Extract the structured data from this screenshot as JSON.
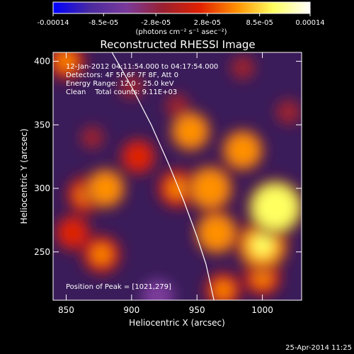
{
  "chart_data": {
    "type": "heatmap",
    "title": "Reconstructed RHESSI Image",
    "xlabel": "Heliocentric X (arcsec)",
    "ylabel": "Heliocentric Y (arcsec)",
    "xlim": [
      840,
      1030
    ],
    "ylim": [
      212,
      407
    ],
    "x_ticks": [
      850,
      900,
      950,
      1000
    ],
    "y_ticks": [
      250,
      300,
      350,
      400
    ],
    "colorbar": {
      "range": [
        -0.00014,
        0.00014
      ],
      "tick_labels": [
        "-0.00014",
        "-8.5e-05",
        "-2.8e-05",
        "2.8e-05",
        "8.5e-05",
        "0.00014"
      ],
      "tick_values": [
        -0.00014,
        -8.5e-05,
        -2.8e-05,
        2.8e-05,
        8.5e-05,
        0.00014
      ],
      "unit_label": "(photons cm⁻² s⁻¹ asec⁻²)",
      "colors": [
        "#0000ff",
        "#4a2aa0",
        "#7a3a9a",
        "#9a2030",
        "#e02000",
        "#ff9000",
        "#ffff60",
        "#ffffff"
      ]
    },
    "annotations": {
      "time_range": "12-Jan-2012 04:11:54.000 to 04:17:54.000",
      "detectors": "Detectors: 4F 5F 6F 7F 8F, Att 0",
      "energy": "Energy Range: 12.0 - 25.0 keV",
      "clean": "Clean    Total counts: 9.11E+03",
      "peak": "Position of Peak = [1021,279]"
    },
    "limb_curve": [
      [
        885,
        407
      ],
      [
        900,
        380
      ],
      [
        915,
        350
      ],
      [
        928,
        320
      ],
      [
        940,
        290
      ],
      [
        950,
        262
      ],
      [
        957,
        240
      ],
      [
        963,
        212
      ]
    ],
    "sources": [
      {
        "x": 960,
        "y": 300,
        "intensity": 7.5e-05
      },
      {
        "x": 1010,
        "y": 285,
        "intensity": 0.00011
      },
      {
        "x": 1000,
        "y": 255,
        "intensity": 9.5e-05
      },
      {
        "x": 945,
        "y": 345,
        "intensity": 5.5e-05
      },
      {
        "x": 985,
        "y": 330,
        "intensity": 6e-05
      },
      {
        "x": 965,
        "y": 265,
        "intensity": 6.5e-05
      },
      {
        "x": 935,
        "y": 300,
        "intensity": 5e-05
      },
      {
        "x": 880,
        "y": 300,
        "intensity": 5.5e-05
      },
      {
        "x": 865,
        "y": 295,
        "intensity": 4.5e-05
      },
      {
        "x": 877,
        "y": 248,
        "intensity": 4.8e-05
      },
      {
        "x": 855,
        "y": 265,
        "intensity": 3.5e-05
      },
      {
        "x": 905,
        "y": 325,
        "intensity": 3.5e-05
      },
      {
        "x": 1000,
        "y": 230,
        "intensity": 4.5e-05
      },
      {
        "x": 970,
        "y": 220,
        "intensity": 4e-05
      },
      {
        "x": 850,
        "y": 400,
        "intensity": 4.5e-05
      },
      {
        "x": 920,
        "y": 215,
        "intensity": -6e-05
      },
      {
        "x": 935,
        "y": 365,
        "intensity": -2e-05
      },
      {
        "x": 1020,
        "y": 360,
        "intensity": -2.5e-05
      },
      {
        "x": 900,
        "y": 380,
        "intensity": -2e-05
      },
      {
        "x": 870,
        "y": 340,
        "intensity": -1.5e-05
      },
      {
        "x": 985,
        "y": 395,
        "intensity": -2e-05
      }
    ]
  },
  "footer": {
    "date": "25-Apr-2014 11:25"
  }
}
